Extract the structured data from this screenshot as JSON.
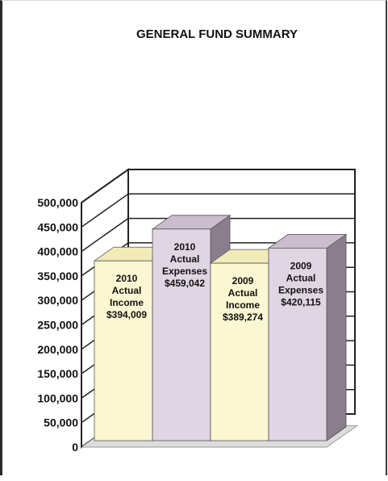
{
  "chart_data": {
    "type": "bar",
    "title": "GENERAL FUND SUMMARY",
    "style": "3d-column",
    "xlabel": "",
    "ylabel": "",
    "ylim": [
      0,
      500000
    ],
    "yticks": [
      "0",
      "50,000",
      "100,000",
      "150,000",
      "200,000",
      "250,000",
      "300,000",
      "350,000",
      "400,000",
      "450,000",
      "500,000"
    ],
    "grid": true,
    "legend": "none",
    "categories": [
      "2010 Actual Income",
      "2010 Actual Expenses",
      "2009 Actual Income",
      "2009 Actual Expenses"
    ],
    "values": [
      394009,
      459042,
      389274,
      420115
    ],
    "data_labels": [
      [
        "2010",
        "Actual",
        "Income",
        "$394,009"
      ],
      [
        "2010",
        "Actual",
        "Expenses",
        "$459,042"
      ],
      [
        "2009",
        "Actual",
        "Income",
        "$389,274"
      ],
      [
        "2009",
        "Actual",
        "Expenses",
        "$420,115"
      ]
    ],
    "colors": {
      "income_front": "#fbf7d2",
      "income_top": "#f1ebb7",
      "income_side": "#c8c28f",
      "expense_front": "#e0d5e2",
      "expense_top": "#cbbdcd",
      "expense_side": "#8a7e8c",
      "floor": "#dcdcdc",
      "gridline": "#222222"
    },
    "bar_colors": [
      "income",
      "expense",
      "income",
      "expense"
    ]
  }
}
